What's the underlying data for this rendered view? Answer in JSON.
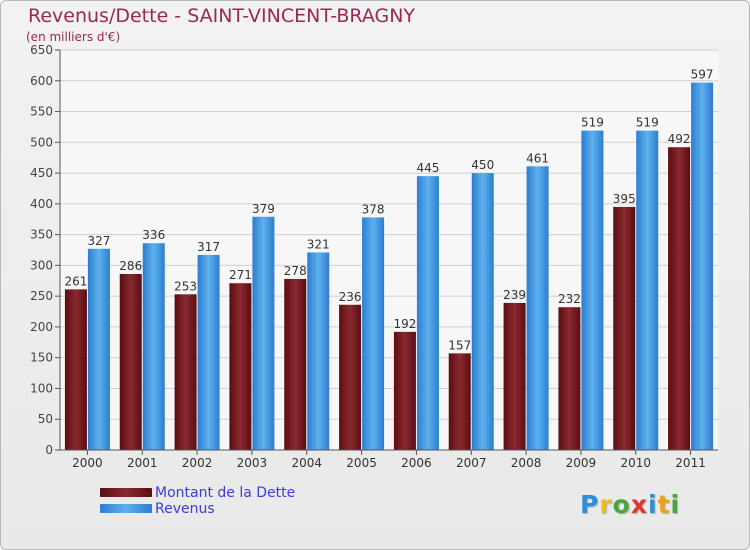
{
  "header": {
    "title": "Revenus/Dette - SAINT-VINCENT-BRAGNY",
    "subtitle": "(en milliers d'€)"
  },
  "chart_data": {
    "type": "bar",
    "categories": [
      "2000",
      "2001",
      "2002",
      "2003",
      "2004",
      "2005",
      "2006",
      "2007",
      "2008",
      "2009",
      "2010",
      "2011"
    ],
    "series": [
      {
        "name": "Montant de la Dette",
        "values": [
          261,
          286,
          253,
          271,
          278,
          236,
          192,
          157,
          239,
          232,
          395,
          492
        ],
        "color": "#7a1f24"
      },
      {
        "name": "Revenus",
        "values": [
          327,
          336,
          317,
          379,
          321,
          378,
          445,
          450,
          461,
          519,
          519,
          597
        ],
        "color": "#4a9fe3"
      }
    ],
    "ylim": [
      0,
      650
    ],
    "yticks": [
      0,
      50,
      100,
      150,
      200,
      250,
      300,
      350,
      400,
      450,
      500,
      550,
      600,
      650
    ],
    "grid": true,
    "legend_position": "bottom-left",
    "xlabel": "",
    "ylabel": ""
  },
  "logo": {
    "letters": [
      {
        "ch": "P",
        "color": "#2e8fd6"
      },
      {
        "ch": "r",
        "color": "#e8c21c"
      },
      {
        "ch": "o",
        "color": "#4aa63b"
      },
      {
        "ch": "x",
        "color": "#e0372b"
      },
      {
        "ch": "i",
        "color": "#2e8fd6"
      },
      {
        "ch": "t",
        "color": "#e8a21c"
      },
      {
        "ch": "i",
        "color": "#4aa63b"
      }
    ]
  }
}
